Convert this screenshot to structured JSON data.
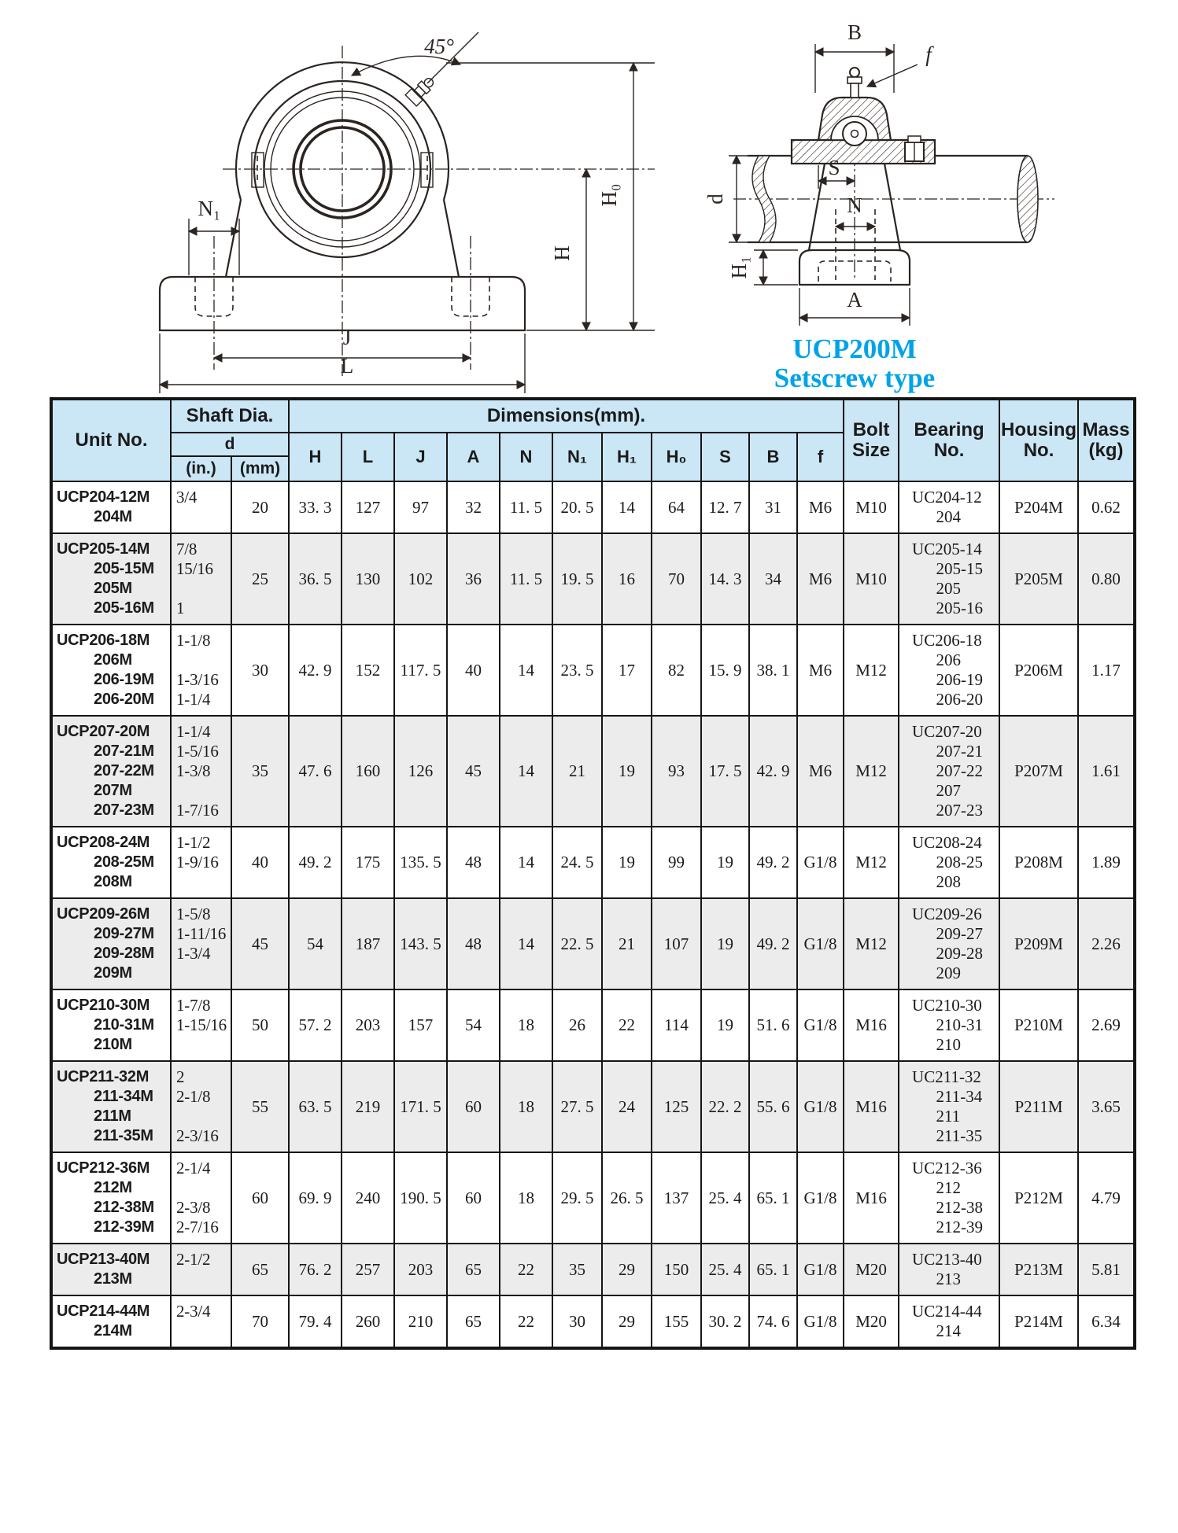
{
  "drawings": {
    "front": {
      "labels": {
        "angle": "45°",
        "n1": "N₁",
        "j": "J",
        "l": "L",
        "h": "H",
        "h0": "H₀"
      }
    },
    "side": {
      "labels": {
        "b": "B",
        "f": "f",
        "s": "S",
        "n": "N",
        "h1": "H₁",
        "a": "A",
        "d": "d"
      },
      "caption_line1": "UCP200M",
      "caption_line2": "Setscrew type",
      "caption_color": "#00a3e8"
    }
  },
  "colors": {
    "header_bg": "#cbe7f6",
    "alt_row": "#ececec",
    "caption": "#00a3e8"
  },
  "table": {
    "headers": {
      "unit_no": "Unit No.",
      "shaft_dia": "Shaft Dia.",
      "d": "d",
      "in": "(in.)",
      "mm": "(mm)",
      "dimensions": "Dimensions(mm).",
      "dim_cols": [
        "H",
        "L",
        "J",
        "A",
        "N",
        "N₁",
        "H₁",
        "H₀",
        "S",
        "B",
        "f"
      ],
      "bolt_size": "Bolt\nSize",
      "bearing_no": "Bearing\nNo.",
      "housing_no": "Housing\nNo.",
      "mass": "Mass\n(kg)"
    },
    "rows": [
      {
        "unit": [
          "UCP204-12M",
          "204M"
        ],
        "in": [
          "3/4"
        ],
        "mm": "20",
        "dims": [
          "33. 3",
          "127",
          "97",
          "32",
          "11. 5",
          "20. 5",
          "14",
          "64",
          "12. 7",
          "31",
          "M6"
        ],
        "bolt": "M10",
        "bearing": [
          "UC204-12",
          "204"
        ],
        "housing": "P204M",
        "mass": "0.62"
      },
      {
        "unit": [
          "UCP205-14M",
          "205-15M",
          "205M",
          "205-16M"
        ],
        "in": [
          "7/8",
          "15/16",
          "",
          "1"
        ],
        "mm": "25",
        "dims": [
          "36. 5",
          "130",
          "102",
          "36",
          "11. 5",
          "19. 5",
          "16",
          "70",
          "14. 3",
          "34",
          "M6"
        ],
        "bolt": "M10",
        "bearing": [
          "UC205-14",
          "205-15",
          "205",
          "205-16"
        ],
        "housing": "P205M",
        "mass": "0.80"
      },
      {
        "unit": [
          "UCP206-18M",
          "206M",
          "206-19M",
          "206-20M"
        ],
        "in": [
          "1-1/8",
          "",
          "1-3/16",
          "1-1/4"
        ],
        "mm": "30",
        "dims": [
          "42. 9",
          "152",
          "117. 5",
          "40",
          "14",
          "23. 5",
          "17",
          "82",
          "15. 9",
          "38. 1",
          "M6"
        ],
        "bolt": "M12",
        "bearing": [
          "UC206-18",
          "206",
          "206-19",
          "206-20"
        ],
        "housing": "P206M",
        "mass": "1.17"
      },
      {
        "unit": [
          "UCP207-20M",
          "207-21M",
          "207-22M",
          "207M",
          "207-23M"
        ],
        "in": [
          "1-1/4",
          "1-5/16",
          "1-3/8",
          "",
          "1-7/16"
        ],
        "mm": "35",
        "dims": [
          "47. 6",
          "160",
          "126",
          "45",
          "14",
          "21",
          "19",
          "93",
          "17. 5",
          "42. 9",
          "M6"
        ],
        "bolt": "M12",
        "bearing": [
          "UC207-20",
          "207-21",
          "207-22",
          "207",
          "207-23"
        ],
        "housing": "P207M",
        "mass": "1.61"
      },
      {
        "unit": [
          "UCP208-24M",
          "208-25M",
          "208M"
        ],
        "in": [
          "1-1/2",
          "1-9/16"
        ],
        "mm": "40",
        "dims": [
          "49. 2",
          "175",
          "135. 5",
          "48",
          "14",
          "24. 5",
          "19",
          "99",
          "19",
          "49. 2",
          "G1/8"
        ],
        "bolt": "M12",
        "bearing": [
          "UC208-24",
          "208-25",
          "208"
        ],
        "housing": "P208M",
        "mass": "1.89"
      },
      {
        "unit": [
          "UCP209-26M",
          "209-27M",
          "209-28M",
          "209M"
        ],
        "in": [
          "1-5/8",
          "1-11/16",
          "1-3/4"
        ],
        "mm": "45",
        "dims": [
          "54",
          "187",
          "143. 5",
          "48",
          "14",
          "22. 5",
          "21",
          "107",
          "19",
          "49. 2",
          "G1/8"
        ],
        "bolt": "M12",
        "bearing": [
          "UC209-26",
          "209-27",
          "209-28",
          "209"
        ],
        "housing": "P209M",
        "mass": "2.26"
      },
      {
        "unit": [
          "UCP210-30M",
          "210-31M",
          "210M"
        ],
        "in": [
          "1-7/8",
          "1-15/16"
        ],
        "mm": "50",
        "dims": [
          "57. 2",
          "203",
          "157",
          "54",
          "18",
          "26",
          "22",
          "114",
          "19",
          "51. 6",
          "G1/8"
        ],
        "bolt": "M16",
        "bearing": [
          "UC210-30",
          "210-31",
          "210"
        ],
        "housing": "P210M",
        "mass": "2.69"
      },
      {
        "unit": [
          "UCP211-32M",
          "211-34M",
          "211M",
          "211-35M"
        ],
        "in": [
          "2",
          "2-1/8",
          "",
          "2-3/16"
        ],
        "mm": "55",
        "dims": [
          "63. 5",
          "219",
          "171. 5",
          "60",
          "18",
          "27. 5",
          "24",
          "125",
          "22. 2",
          "55. 6",
          "G1/8"
        ],
        "bolt": "M16",
        "bearing": [
          "UC211-32",
          "211-34",
          "211",
          "211-35"
        ],
        "housing": "P211M",
        "mass": "3.65"
      },
      {
        "unit": [
          "UCP212-36M",
          "212M",
          "212-38M",
          "212-39M"
        ],
        "in": [
          "2-1/4",
          "",
          "2-3/8",
          "2-7/16"
        ],
        "mm": "60",
        "dims": [
          "69. 9",
          "240",
          "190. 5",
          "60",
          "18",
          "29. 5",
          "26. 5",
          "137",
          "25. 4",
          "65. 1",
          "G1/8"
        ],
        "bolt": "M16",
        "bearing": [
          "UC212-36",
          "212",
          "212-38",
          "212-39"
        ],
        "housing": "P212M",
        "mass": "4.79"
      },
      {
        "unit": [
          "UCP213-40M",
          "213M"
        ],
        "in": [
          "2-1/2"
        ],
        "mm": "65",
        "dims": [
          "76. 2",
          "257",
          "203",
          "65",
          "22",
          "35",
          "29",
          "150",
          "25. 4",
          "65. 1",
          "G1/8"
        ],
        "bolt": "M20",
        "bearing": [
          "UC213-40",
          "213"
        ],
        "housing": "P213M",
        "mass": "5.81"
      },
      {
        "unit": [
          "UCP214-44M",
          "214M"
        ],
        "in": [
          "2-3/4"
        ],
        "mm": "70",
        "dims": [
          "79. 4",
          "260",
          "210",
          "65",
          "22",
          "30",
          "29",
          "155",
          "30. 2",
          "74. 6",
          "G1/8"
        ],
        "bolt": "M20",
        "bearing": [
          "UC214-44",
          "214"
        ],
        "housing": "P214M",
        "mass": "6.34"
      }
    ]
  }
}
